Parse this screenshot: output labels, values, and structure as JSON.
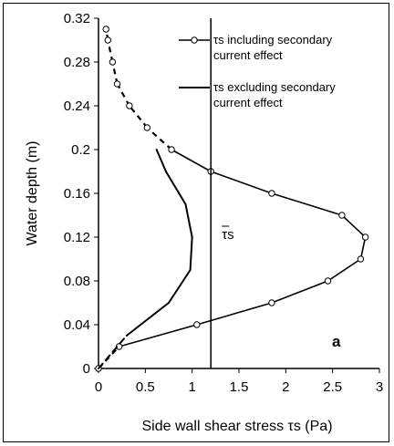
{
  "chart_data": {
    "type": "line",
    "xlabel": "Side wall shear stress τs (Pa)",
    "ylabel": "Water depth  (m)",
    "xlim": [
      0,
      3
    ],
    "ylim": [
      0,
      0.32
    ],
    "x_ticks": [
      "0",
      "0.5",
      "1",
      "1.5",
      "2",
      "2.5",
      "3"
    ],
    "y_ticks": [
      "0",
      "0.04",
      "0.08",
      "0.12",
      "0.16",
      "0.2",
      "0.24",
      "0.28",
      "0.32"
    ],
    "series": [
      {
        "name": "τs including secondary current effect",
        "style": "line-open-circle",
        "dashed_segments": [
          [
            0,
            6
          ],
          [
            17,
            19
          ]
        ],
        "x": [
          0.0,
          0.22,
          1.05,
          1.85,
          2.45,
          2.8,
          2.85,
          2.6,
          1.85,
          1.2,
          0.78,
          0.52,
          0.33,
          0.2,
          0.15,
          0.1,
          0.08
        ],
        "y": [
          0.0,
          0.02,
          0.04,
          0.06,
          0.08,
          0.1,
          0.12,
          0.14,
          0.16,
          0.18,
          0.2,
          0.22,
          0.24,
          0.26,
          0.28,
          0.3,
          0.31
        ]
      },
      {
        "name": "τs excluding secondary current effect",
        "style": "solid-line",
        "dashed_below_y": 0.04,
        "x": [
          0.0,
          0.3,
          0.75,
          0.98,
          1.0,
          0.93,
          0.72,
          0.62
        ],
        "y": [
          0.0,
          0.03,
          0.06,
          0.09,
          0.12,
          0.15,
          0.18,
          0.2
        ]
      }
    ],
    "mean_line": {
      "x": 1.2,
      "label": "τs"
    },
    "panel_label": "a",
    "legend_position": "top-right",
    "grid": false,
    "legend": {
      "entry1_line1": "τs including secondary",
      "entry1_line2": "current effect",
      "entry2_line1": "τs excluding secondary",
      "entry2_line2": "current effect"
    }
  }
}
